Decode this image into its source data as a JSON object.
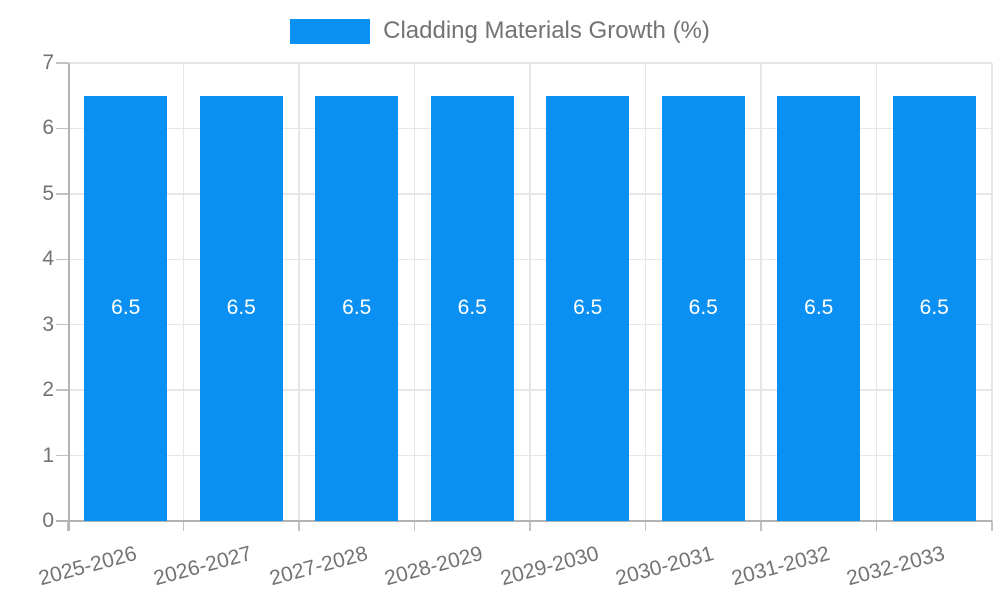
{
  "chart_data": {
    "type": "bar",
    "title": "Cladding Materials Growth (%)",
    "legend": {
      "position": "top",
      "entries": [
        "Cladding Materials Growth (%)"
      ]
    },
    "categories": [
      "2025-2026",
      "2026-2027",
      "2027-2028",
      "2028-2029",
      "2029-2030",
      "2030-2031",
      "2031-2032",
      "2032-2033"
    ],
    "series": [
      {
        "name": "Cladding Materials Growth (%)",
        "values": [
          6.5,
          6.5,
          6.5,
          6.5,
          6.5,
          6.5,
          6.5,
          6.5
        ]
      }
    ],
    "bar_value_labels": [
      "6.5",
      "6.5",
      "6.5",
      "6.5",
      "6.5",
      "6.5",
      "6.5",
      "6.5"
    ],
    "xlabel": "",
    "ylabel": "",
    "ylim": [
      0,
      7
    ],
    "yticks": [
      "0",
      "1",
      "2",
      "3",
      "4",
      "5",
      "6",
      "7"
    ],
    "grid": true,
    "x_label_rotation_deg": -15,
    "colors": {
      "bar": "#0a8ff2",
      "grid": "#e6e6e6",
      "axis": "#b3b3b3",
      "tick": "#c2c2c2",
      "text": "#737373",
      "value_label": "#ffffff",
      "background": "#ffffff"
    }
  }
}
